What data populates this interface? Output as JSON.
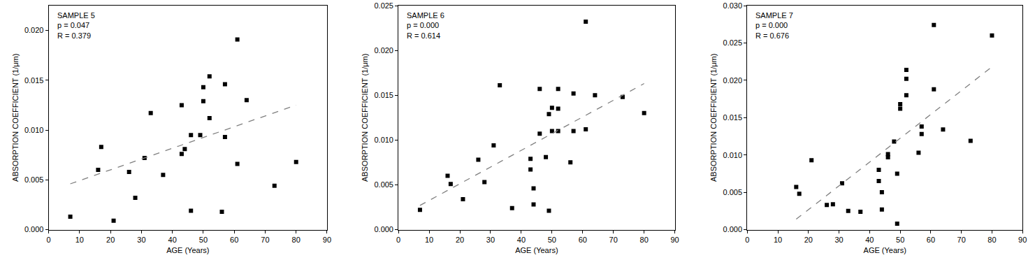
{
  "chart_data": [
    {
      "type": "scatter",
      "annotations": [
        "SAMPLE 5",
        "p = 0.047",
        "R = 0.379"
      ],
      "x_label": "AGE (Years)",
      "y_label": "ABSORPTION COEFFICIENT (1/μm)",
      "x": [
        7,
        16,
        17,
        21,
        26,
        28,
        31,
        33,
        37,
        43,
        43,
        44,
        46,
        46,
        49,
        50,
        50,
        52,
        52,
        56,
        57,
        57,
        61,
        61,
        64,
        73,
        80
      ],
      "values": [
        0.0013,
        0.006,
        0.0083,
        0.0009,
        0.0058,
        0.0032,
        0.0072,
        0.0117,
        0.0055,
        0.0125,
        0.0076,
        0.0081,
        0.0095,
        0.0019,
        0.0095,
        0.0143,
        0.0129,
        0.0154,
        0.0112,
        0.0018,
        0.0146,
        0.0093,
        0.0191,
        0.0066,
        0.013,
        0.0044,
        0.0068
      ],
      "trend": {
        "x": [
          7,
          80
        ],
        "values": [
          0.0046,
          0.0125
        ],
        "line_style": "dashed"
      },
      "color": "#000000",
      "marker": "square",
      "xlim": [
        0,
        90
      ],
      "xticks": [
        0,
        10,
        20,
        30,
        40,
        50,
        60,
        70,
        80,
        90
      ],
      "ylim": [
        0,
        0.0225
      ],
      "yticks": [
        {
          "value": 0,
          "label": "0.000"
        },
        {
          "value": 0.005,
          "label": "0.005"
        },
        {
          "value": 0.01,
          "label": "0.010"
        },
        {
          "value": 0.015,
          "label": "0.015"
        },
        {
          "value": 0.02,
          "label": "0.020"
        }
      ],
      "grid": false
    },
    {
      "type": "scatter",
      "annotations": [
        "SAMPLE 6",
        "p = 0.000",
        "R = 0.614"
      ],
      "x_label": "AGE (Years)",
      "y_label": "ABSORPTION COEFFICIENT (1/μm)",
      "x": [
        7,
        16,
        17,
        21,
        26,
        28,
        31,
        33,
        37,
        43,
        43,
        44,
        44,
        46,
        46,
        48,
        49,
        49,
        50,
        50,
        52,
        52,
        52,
        56,
        57,
        57,
        61,
        61,
        64,
        73,
        80
      ],
      "values": [
        0.0022,
        0.006,
        0.0051,
        0.0034,
        0.0078,
        0.0053,
        0.0094,
        0.0161,
        0.0024,
        0.0079,
        0.0067,
        0.0046,
        0.0028,
        0.0157,
        0.0107,
        0.0081,
        0.0129,
        0.0021,
        0.0136,
        0.011,
        0.0157,
        0.0135,
        0.011,
        0.0075,
        0.0152,
        0.011,
        0.0232,
        0.0112,
        0.015,
        0.0148,
        0.013
      ],
      "trend": {
        "x": [
          7,
          80
        ],
        "values": [
          0.0027,
          0.0163
        ],
        "line_style": "dashed"
      },
      "color": "#000000",
      "marker": "square",
      "xlim": [
        0,
        90
      ],
      "xticks": [
        0,
        10,
        20,
        30,
        40,
        50,
        60,
        70,
        80,
        90
      ],
      "ylim": [
        0,
        0.025
      ],
      "yticks": [
        {
          "value": 0,
          "label": "0.000"
        },
        {
          "value": 0.005,
          "label": "0.005"
        },
        {
          "value": 0.01,
          "label": "0.010"
        },
        {
          "value": 0.015,
          "label": "0.015"
        },
        {
          "value": 0.02,
          "label": "0.020"
        },
        {
          "value": 0.025,
          "label": "0.025"
        }
      ],
      "grid": false
    },
    {
      "type": "scatter",
      "annotations": [
        "SAMPLE 7",
        "p = 0.000",
        "R = 0.676"
      ],
      "x_label": "AGE (Years)",
      "y_label": "ABSORPTION COEFFICIENT (1/μm)",
      "x": [
        16,
        17,
        21,
        26,
        28,
        31,
        33,
        37,
        43,
        43,
        44,
        44,
        46,
        46,
        48,
        49,
        49,
        50,
        50,
        52,
        52,
        52,
        56,
        57,
        57,
        61,
        61,
        64,
        73,
        80
      ],
      "values": [
        0.0057,
        0.0048,
        0.0093,
        0.0033,
        0.0034,
        0.0062,
        0.0025,
        0.0024,
        0.008,
        0.0065,
        0.005,
        0.0027,
        0.0101,
        0.0097,
        0.0118,
        0.0075,
        0.0008,
        0.0168,
        0.0162,
        0.0214,
        0.0202,
        0.018,
        0.0103,
        0.0138,
        0.0128,
        0.0274,
        0.0188,
        0.0134,
        0.0119,
        0.026
      ],
      "trend": {
        "x": [
          16,
          80
        ],
        "values": [
          0.0014,
          0.0218
        ],
        "line_style": "dashed"
      },
      "color": "#000000",
      "marker": "square",
      "xlim": [
        0,
        90
      ],
      "xticks": [
        0,
        10,
        20,
        30,
        40,
        50,
        60,
        70,
        80,
        90
      ],
      "ylim": [
        0,
        0.03
      ],
      "yticks": [
        {
          "value": 0,
          "label": "0.000"
        },
        {
          "value": 0.005,
          "label": "0.005"
        },
        {
          "value": 0.01,
          "label": "0.010"
        },
        {
          "value": 0.015,
          "label": "0.015"
        },
        {
          "value": 0.02,
          "label": "0.020"
        },
        {
          "value": 0.025,
          "label": "0.025"
        },
        {
          "value": 0.03,
          "label": "0.030"
        }
      ],
      "grid": false
    }
  ]
}
